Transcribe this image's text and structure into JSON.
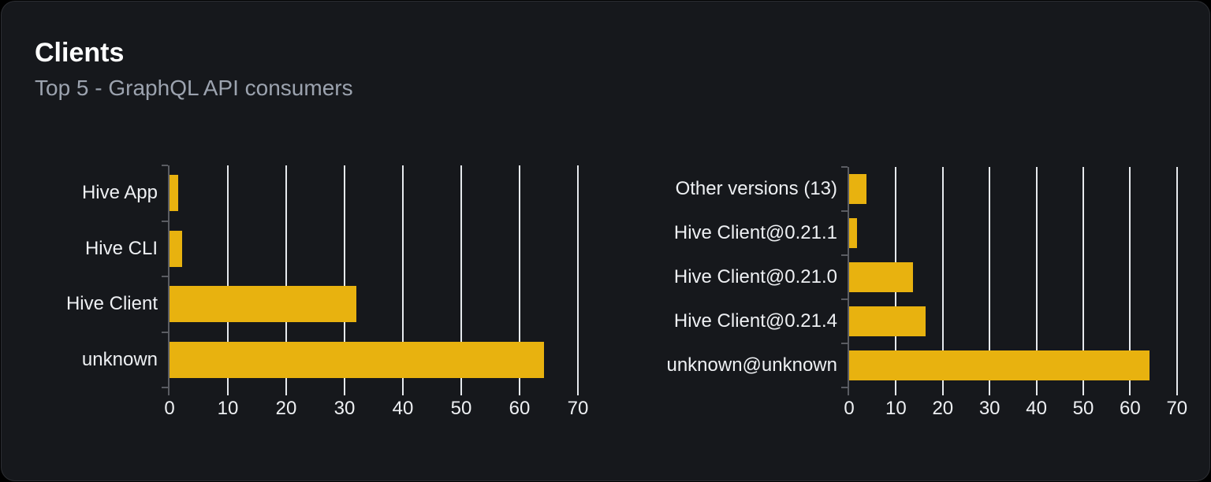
{
  "card": {
    "title": "Clients",
    "subtitle": "Top 5 - GraphQL API consumers"
  },
  "colors": {
    "page_bg": "#000000",
    "card_bg": "#16181c",
    "card_border": "#2c2e33",
    "title": "#ffffff",
    "subtitle": "#9ca3af",
    "label": "#eef0f3",
    "bar": "#e8b20f",
    "gridline": "#e6e9ed",
    "axis": "#5a5c62"
  },
  "chart_data": [
    {
      "type": "bar",
      "orientation": "horizontal",
      "title": "Clients by name",
      "categories": [
        "Hive App",
        "Hive CLI",
        "Hive Client",
        "unknown"
      ],
      "values": [
        1.5,
        2.2,
        32,
        64.2
      ],
      "xticks": [
        0,
        10,
        20,
        30,
        40,
        50,
        60,
        70
      ],
      "xlim": [
        0,
        70.8
      ],
      "xlabel": "",
      "ylabel": "",
      "grid": "vertical",
      "legend": "none",
      "bar_color": "#e8b20f"
    },
    {
      "type": "bar",
      "orientation": "horizontal",
      "title": "Clients by version",
      "categories": [
        "Other versions (13)",
        "Hive Client@0.21.1",
        "Hive Client@0.21.0",
        "Hive Client@0.21.4",
        "unknown@unknown"
      ],
      "values": [
        3.7,
        1.7,
        13.6,
        16.3,
        64.2
      ],
      "xticks": [
        0,
        10,
        20,
        30,
        40,
        50,
        60,
        70
      ],
      "xlim": [
        0,
        71
      ],
      "xlabel": "",
      "ylabel": "",
      "grid": "vertical",
      "legend": "none",
      "bar_color": "#e8b20f"
    }
  ]
}
